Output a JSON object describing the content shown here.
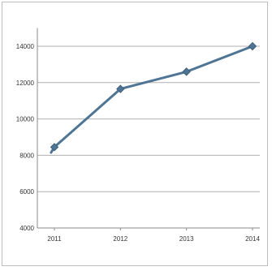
{
  "chart_data": {
    "type": "line",
    "title": "",
    "xlabel": "",
    "ylabel": "",
    "categories": [
      "2011",
      "2012",
      "2013",
      "2014"
    ],
    "series": [
      {
        "x": [
          2010.95,
          2011,
          2012,
          2013,
          2014
        ],
        "values": [
          8150,
          8450,
          11650,
          12600,
          14000
        ],
        "color": "#4f7594",
        "marker": "diamond"
      }
    ],
    "ylim": [
      4000,
      15000
    ],
    "yticks": [
      "4000",
      "6000",
      "8000",
      "10000",
      "12000",
      "14000"
    ],
    "grid": true,
    "legend": "none",
    "colors": {
      "line": "#4f7594",
      "marker": "#4f7594",
      "grid": "#b0b0b0",
      "axis": "#8a8a8a",
      "frame": "#bdbdbd"
    }
  }
}
